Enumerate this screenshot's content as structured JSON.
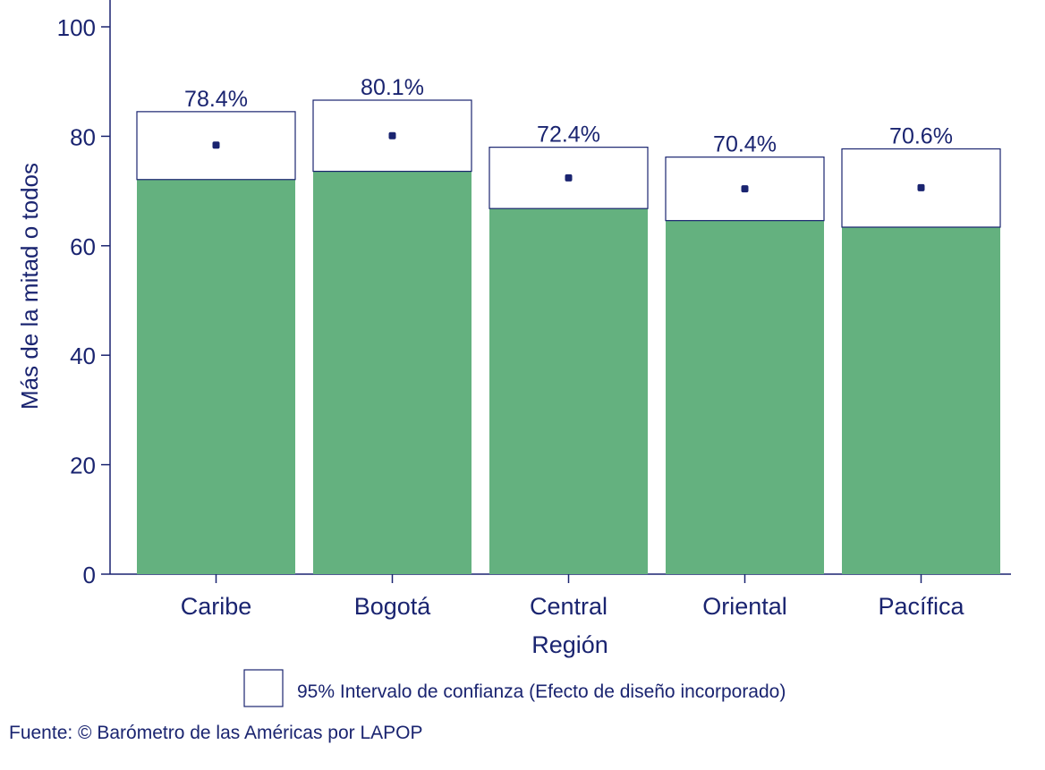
{
  "chart_data": {
    "type": "bar",
    "categories": [
      "Caribe",
      "Bogotá",
      "Central",
      "Oriental",
      "Pacífica"
    ],
    "values": [
      78.4,
      80.1,
      72.4,
      70.4,
      70.6
    ],
    "ci_low": [
      72.1,
      73.6,
      66.8,
      64.6,
      63.4
    ],
    "ci_high": [
      84.5,
      86.6,
      78.0,
      76.2,
      77.7
    ],
    "value_labels": [
      "78.4%",
      "80.1%",
      "72.4%",
      "70.4%",
      "70.6%"
    ],
    "xlabel": "Región",
    "ylabel": "Más de la mitad o todos",
    "ylim": [
      0,
      100
    ],
    "yticks": [
      0,
      20,
      40,
      60,
      80,
      100
    ],
    "grid": false,
    "legend": {
      "label": "95%  Intervalo de confianza (Efecto de diseño incorporado)",
      "placement": "bottom"
    },
    "colors": {
      "bar": "#64b17f",
      "text": "#1a2470",
      "ci_box": "#ffffff"
    }
  },
  "source_note": "Fuente: © Barómetro de las Américas por LAPOP"
}
